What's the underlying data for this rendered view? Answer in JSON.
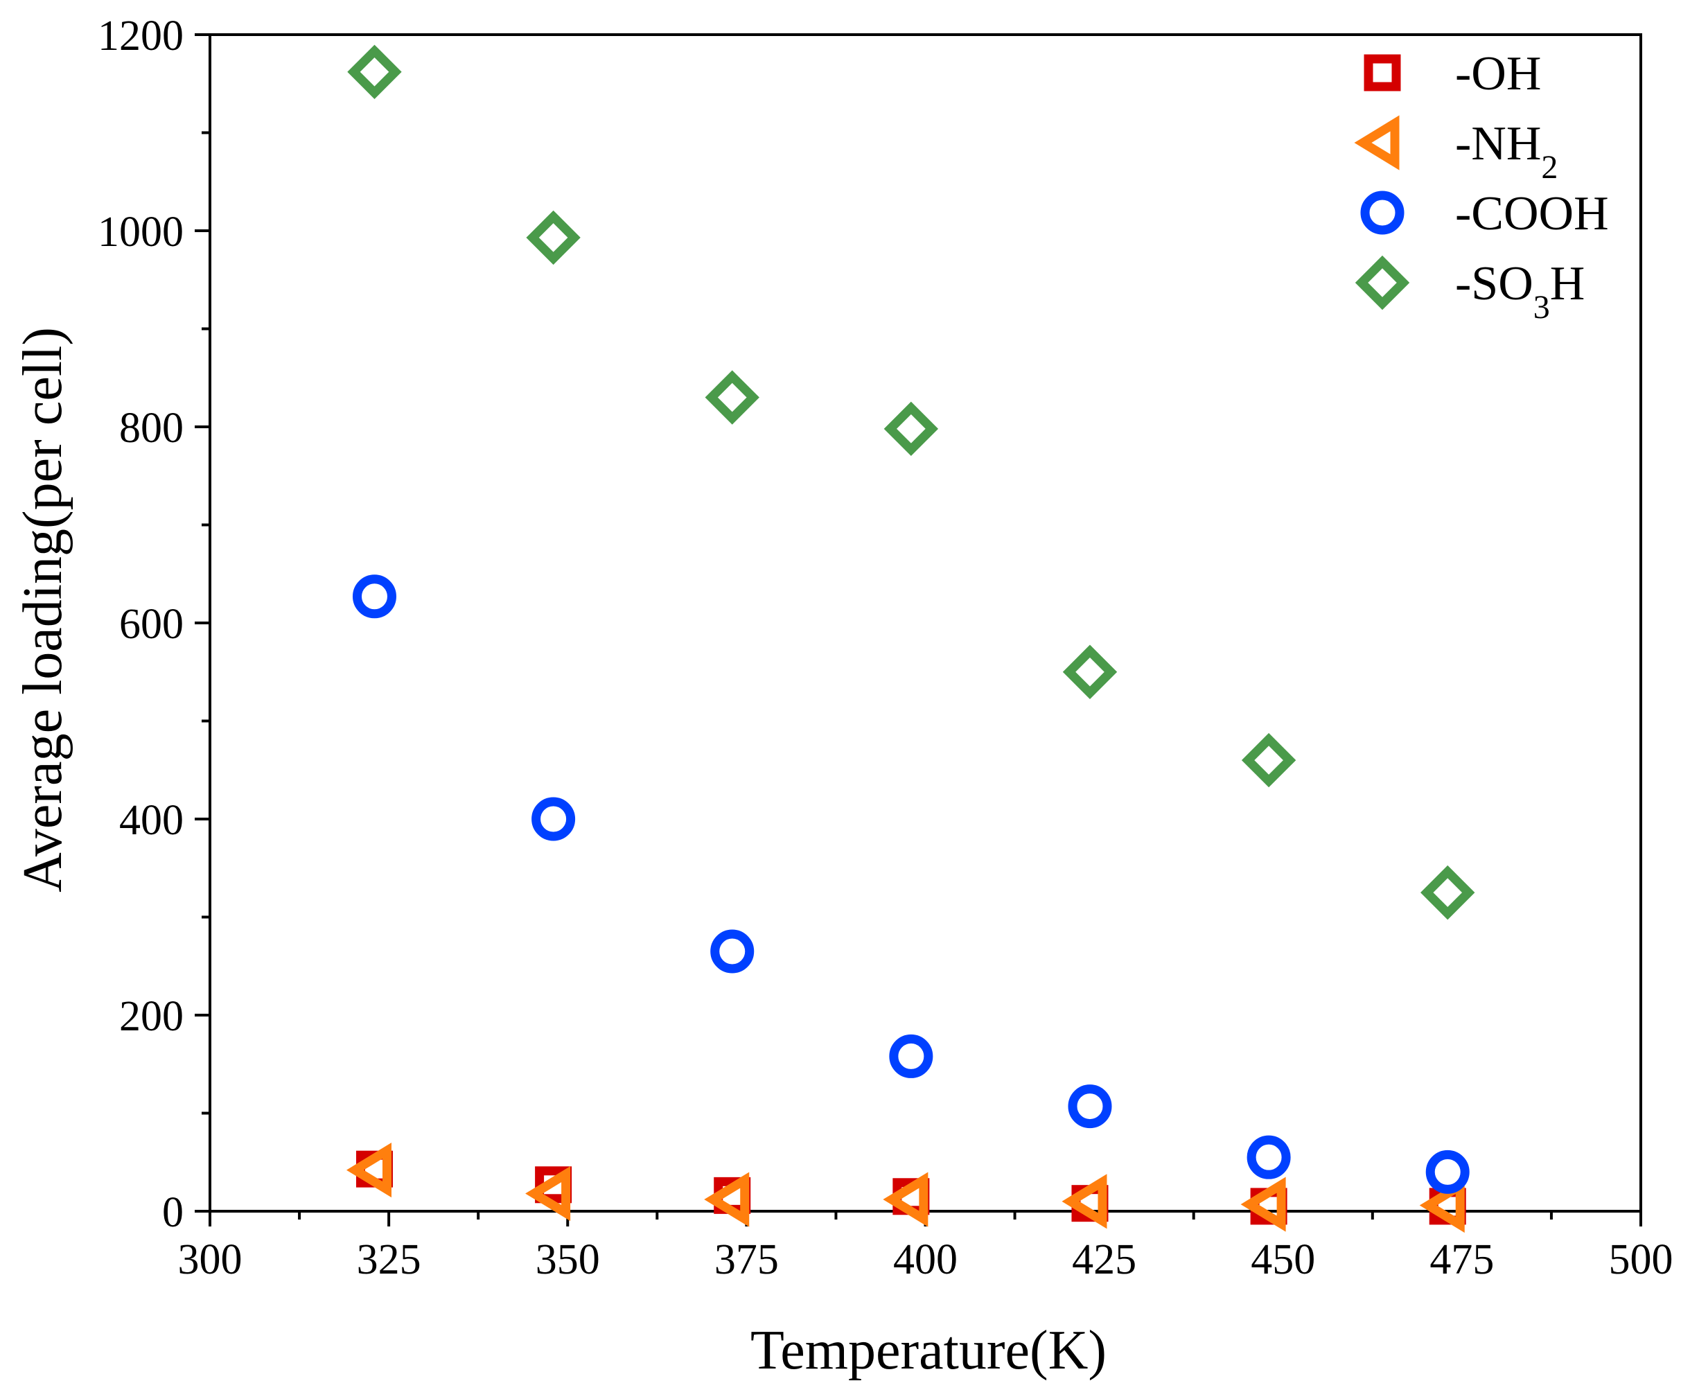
{
  "chart_data": {
    "type": "scatter",
    "title": "",
    "xlabel": "Temperature(K)",
    "ylabel": "Average loading(per cell)",
    "xlim": [
      300,
      500
    ],
    "ylim": [
      0,
      1200
    ],
    "xticks": [
      300,
      325,
      350,
      375,
      400,
      425,
      450,
      475,
      500
    ],
    "yticks": [
      0,
      200,
      400,
      600,
      800,
      1000,
      1200
    ],
    "grid": false,
    "legend_position": "top-right",
    "series": [
      {
        "name": "-OH",
        "label_main": "-OH",
        "label_sub": "",
        "label_tail": "",
        "marker": "square",
        "color": "#d40000",
        "x": [
          323,
          348,
          373,
          398,
          423,
          448,
          473
        ],
        "y": [
          43,
          27,
          16,
          15,
          8,
          5,
          5
        ]
      },
      {
        "name": "-NH2",
        "label_main": "-NH",
        "label_sub": "2",
        "label_tail": "",
        "marker": "triangle-left",
        "color": "#ff7f0e",
        "x": [
          323,
          348,
          373,
          398,
          423,
          448,
          473
        ],
        "y": [
          42,
          18,
          12,
          12,
          10,
          7,
          6
        ]
      },
      {
        "name": "-COOH",
        "label_main": "-COOH",
        "label_sub": "",
        "label_tail": "",
        "marker": "circle",
        "color": "#0040ff",
        "x": [
          323,
          348,
          373,
          398,
          423,
          448,
          473
        ],
        "y": [
          627,
          400,
          265,
          158,
          107,
          55,
          40
        ]
      },
      {
        "name": "-SO3H",
        "label_main": "-SO",
        "label_sub": "3",
        "label_tail": "H",
        "marker": "diamond",
        "color": "#4a9a4a",
        "x": [
          323,
          348,
          373,
          398,
          423,
          448,
          473
        ],
        "y": [
          1162,
          993,
          830,
          798,
          550,
          460,
          325
        ]
      }
    ]
  }
}
